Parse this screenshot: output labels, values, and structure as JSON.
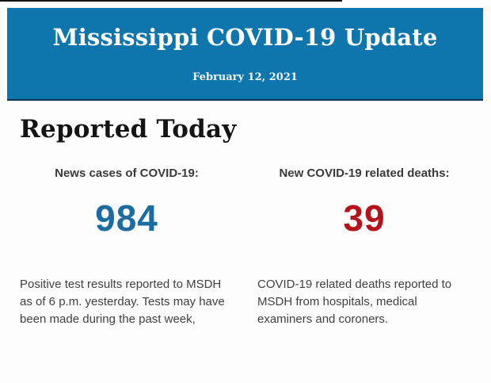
{
  "page": {
    "background": "#fdfdfd",
    "top_line_color": "#111111"
  },
  "banner": {
    "title": "Mississippi COVID-19 Update",
    "date": "February 12, 2021",
    "background_color": "#0f76ad",
    "border_bottom_color": "#0c3350",
    "text_color": "#ffffff"
  },
  "section": {
    "heading": "Reported Today"
  },
  "stats": [
    {
      "label": "News cases of COVID-19:",
      "value": "984",
      "value_color": "#1b6ca3",
      "description": "Positive test results reported to MSDH as of 6 p.m. yesterday. Tests may have been made during the past week,"
    },
    {
      "label": "New COVID-19 related deaths:",
      "value": "39",
      "value_color": "#b5121a",
      "description": "COVID-19 related deaths reported to MSDH from hospitals, medical examiners and coroners."
    }
  ]
}
